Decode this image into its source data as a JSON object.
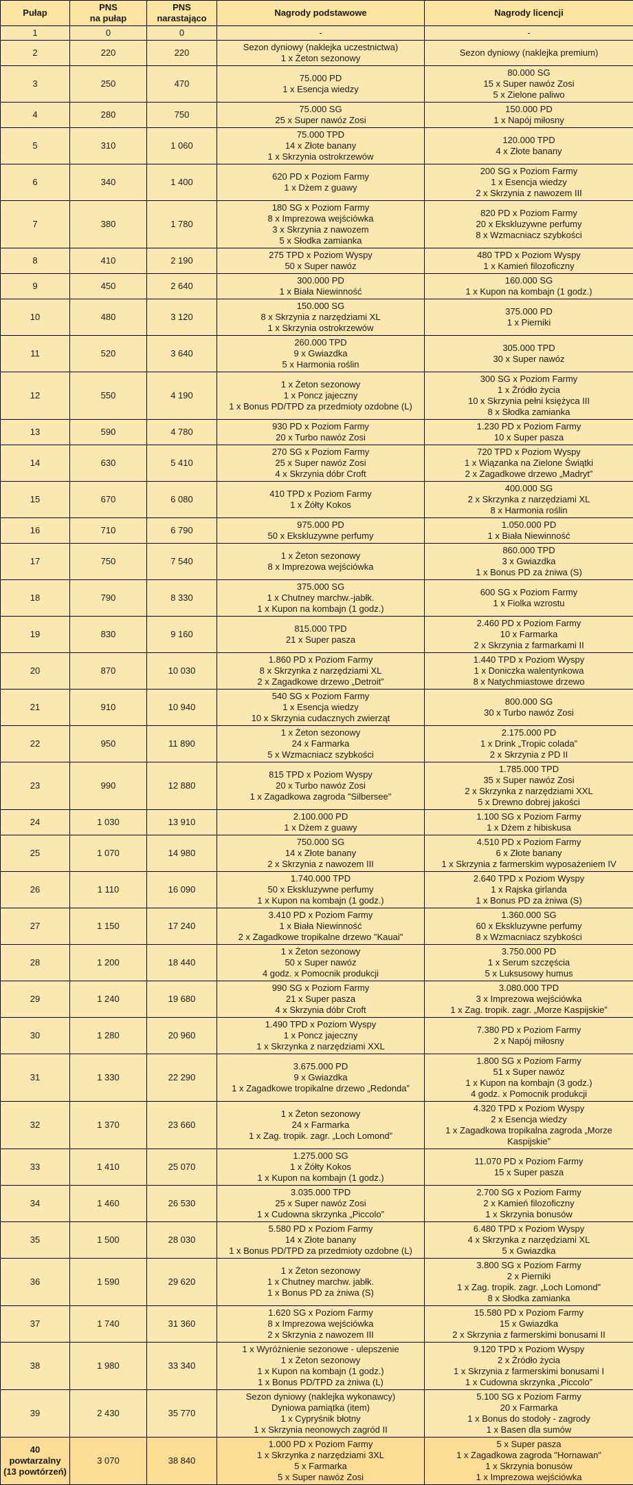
{
  "headers": {
    "level": "Pułap",
    "pns_level": [
      "PNS",
      "na pułap"
    ],
    "pns_total": [
      "PNS",
      "narastająco"
    ],
    "basic": "Nagrody podstawowe",
    "license": "Nagrody licencji"
  },
  "rows": [
    {
      "level": [
        "1"
      ],
      "pns": "0",
      "total": "0",
      "basic": [
        "-"
      ],
      "license": [
        "-"
      ]
    },
    {
      "level": [
        "2"
      ],
      "pns": "220",
      "total": "220",
      "basic": [
        "Sezon dyniowy (naklejka uczestnictwa)",
        "1 x Żeton sezonowy"
      ],
      "license": [
        "Sezon dyniowy (naklejka premium)"
      ]
    },
    {
      "level": [
        "3"
      ],
      "pns": "250",
      "total": "470",
      "basic": [
        "75.000 PD",
        "1 x Esencja wiedzy"
      ],
      "license": [
        "80.000 SG",
        "15 x Super nawóz Zosi",
        "5 x Zielone paliwo"
      ]
    },
    {
      "level": [
        "4"
      ],
      "pns": "280",
      "total": "750",
      "basic": [
        "75.000 SG",
        "25 x Super nawóz Zosi"
      ],
      "license": [
        "150.000 PD",
        "1 x Napój miłosny"
      ]
    },
    {
      "level": [
        "5"
      ],
      "pns": "310",
      "total": "1 060",
      "basic": [
        "75.000 TPD",
        "14 x Złote banany",
        "1 x Skrzynia ostrokrzewów"
      ],
      "license": [
        "120.000 TPD",
        "4 x Złote banany"
      ]
    },
    {
      "level": [
        "6"
      ],
      "pns": "340",
      "total": "1 400",
      "basic": [
        "620 PD x Poziom Farmy",
        "1 x Dżem z guawy"
      ],
      "license": [
        "200 SG x Poziom Farmy",
        "1 x Esencja wiedzy",
        "2 x Skrzynia z nawozem III"
      ]
    },
    {
      "level": [
        "7"
      ],
      "pns": "380",
      "total": "1 780",
      "basic": [
        "180 SG x Poziom Farmy",
        "8 x Imprezowa wejściówka",
        "3 x Skrzynia z nawozem",
        "5 x Słodka zamianka"
      ],
      "license": [
        "820 PD x Poziom Farmy",
        "20 x Ekskluzywne perfumy",
        "8 x Wzmacniacz szybkości"
      ]
    },
    {
      "level": [
        "8"
      ],
      "pns": "410",
      "total": "2 190",
      "basic": [
        "275 TPD x Poziom Wyspy",
        "50 x Super nawóz"
      ],
      "license": [
        "480 TPD x Poziom Wyspy",
        "1 x Kamień filozoficzny"
      ]
    },
    {
      "level": [
        "9"
      ],
      "pns": "450",
      "total": "2 640",
      "basic": [
        "300.000 PD",
        "1 x Biała Niewinność"
      ],
      "license": [
        "160.000 SG",
        "1 x Kupon na kombajn (1 godz.)"
      ]
    },
    {
      "level": [
        "10"
      ],
      "pns": "480",
      "total": "3 120",
      "basic": [
        "150.000 SG",
        "8 x Skrzynia z narzędziami XL",
        "1 x Skrzynia ostrokrzewów"
      ],
      "license": [
        "375.000 PD",
        "1 x Pierniki"
      ]
    },
    {
      "level": [
        "11"
      ],
      "pns": "520",
      "total": "3 640",
      "basic": [
        "260.000 TPD",
        "9 x Gwiazdka",
        "5 x Harmonia roślin"
      ],
      "license": [
        "305.000 TPD",
        "30 x Super nawóz"
      ]
    },
    {
      "level": [
        "12"
      ],
      "pns": "550",
      "total": "4 190",
      "basic": [
        "1 x Żeton sezonowy",
        "1 x Poncz jajeczny",
        "1 x Bonus PD/TPD za przedmioty ozdobne (L)"
      ],
      "license": [
        "300 SG x Poziom Farmy",
        "1 x Źródło życia",
        "10 x Skrzynia pełni księżyca III",
        "8 x Słodka zamianka"
      ]
    },
    {
      "level": [
        "13"
      ],
      "pns": "590",
      "total": "4 780",
      "basic": [
        "930 PD x Poziom Farmy",
        "20 x Turbo nawóz Zosi"
      ],
      "license": [
        "1.230 PD x Poziom Farmy",
        "10 x Super pasza"
      ]
    },
    {
      "level": [
        "14"
      ],
      "pns": "630",
      "total": "5 410",
      "basic": [
        "270 SG x Poziom Farmy",
        "25 x Super nawóz Zosi",
        "4 x Skrzynia dóbr Croft"
      ],
      "license": [
        "720 TPD x Poziom Wyspy",
        "1 x Wiązanka na Zielone Świątki",
        "2 x Zagadkowe drzewo „Madryt”"
      ]
    },
    {
      "level": [
        "15"
      ],
      "pns": "670",
      "total": "6 080",
      "basic": [
        "410 TPD x Poziom Farmy",
        "1 x Żółty Kokos"
      ],
      "license": [
        "400.000 SG",
        "2 x Skrzynka z narzędziami XL",
        "8 x Harmonia roślin"
      ]
    },
    {
      "level": [
        "16"
      ],
      "pns": "710",
      "total": "6 790",
      "basic": [
        "975.000 PD",
        "50 x Ekskluzywne perfumy"
      ],
      "license": [
        "1.050.000 PD",
        "1 x Biała Niewinność"
      ]
    },
    {
      "level": [
        "17"
      ],
      "pns": "750",
      "total": "7 540",
      "basic": [
        "1 x Żeton sezonowy",
        "8 x Imprezowa wejściówka"
      ],
      "license": [
        "860.000 TPD",
        "3 x Gwiazdka",
        "1 x Bonus PD za żniwa (S)"
      ]
    },
    {
      "level": [
        "18"
      ],
      "pns": "790",
      "total": "8 330",
      "basic": [
        "375.000 SG",
        "1 x Chutney marchw.-jabłk.",
        "1 x Kupon na kombajn (1 godz.)"
      ],
      "license": [
        "600 SG x Poziom Farmy",
        "1 x Fiolka wzrostu"
      ]
    },
    {
      "level": [
        "19"
      ],
      "pns": "830",
      "total": "9 160",
      "basic": [
        "815.000 TPD",
        "21 x Super pasza"
      ],
      "license": [
        "2.460 PD x Poziom Farmy",
        "10 x Farmarka",
        "2 x Skrzynia z farmarkami II"
      ]
    },
    {
      "level": [
        "20"
      ],
      "pns": "870",
      "total": "10 030",
      "basic": [
        "1.860 PD x Poziom Farmy",
        "8 x Skrzynka z narzędziami XL",
        "2 x Zagadkowe drzewo „Detroit”"
      ],
      "license": [
        "1.440 TPD x Poziom Wyspy",
        "1 x Doniczka walentynkowa",
        "8 x Natychmiastowe drzewo"
      ]
    },
    {
      "level": [
        "21"
      ],
      "pns": "910",
      "total": "10 940",
      "basic": [
        "540 SG x Poziom Farmy",
        "1 x Esencja wiedzy",
        "10 x Skrzynia cudacznych zwierząt"
      ],
      "license": [
        "800.000 SG",
        "30 x Turbo nawóz Zosi"
      ]
    },
    {
      "level": [
        "22"
      ],
      "pns": "950",
      "total": "11 890",
      "basic": [
        "1 x Żeton sezonowy",
        "24 x Farmarka",
        "5 x Wzmacniacz szybkości"
      ],
      "license": [
        "2.175.000 PD",
        "1 x Drink „Tropic colada”",
        "2 x Skrzynia z PD II"
      ]
    },
    {
      "level": [
        "23"
      ],
      "pns": "990",
      "total": "12 880",
      "basic": [
        "815 TPD x Poziom Wyspy",
        "20 x Turbo nawóz Zosi",
        "1 x Zagadkowa zagroda \"Silbersee\""
      ],
      "license": [
        "1.785.000 TPD",
        "35 x Super nawóz Zosi",
        "2 x Skrzynka z narzędziami XXL",
        "5 x Drewno dobrej jakości"
      ]
    },
    {
      "level": [
        "24"
      ],
      "pns": "1 030",
      "total": "13 910",
      "basic": [
        "2.100.000 PD",
        "1 x Dżem z guawy"
      ],
      "license": [
        "1.100 SG x Poziom Farmy",
        "1 x Dżem z hibiskusa"
      ]
    },
    {
      "level": [
        "25"
      ],
      "pns": "1 070",
      "total": "14 980",
      "basic": [
        "750.000 SG",
        "14 x Złote banany",
        "2 x Skrzynia z nawozem III"
      ],
      "license": [
        "4.510 PD x Poziom Farmy",
        "6 x Złote banany",
        "1 x Skrzynia z farmerskim wyposażeniem IV"
      ]
    },
    {
      "level": [
        "26"
      ],
      "pns": "1 110",
      "total": "16 090",
      "basic": [
        "1.740.000 TPD",
        "50 x Ekskluzywne perfumy",
        "1 x Kupon na kombajn (1 godz.)"
      ],
      "license": [
        "2.640 TPD x Poziom Wyspy",
        "1 x Rajska girlanda",
        "1 x Bonus PD za żniwa (S)"
      ]
    },
    {
      "level": [
        "27"
      ],
      "pns": "1 150",
      "total": "17 240",
      "basic": [
        "3.410 PD x Poziom Farmy",
        "1 x Biała Niewinność",
        "2 x Zagadkowe tropikalne drzewo \"Kauai\""
      ],
      "license": [
        "1.360.000 SG",
        "60 x Ekskluzywne perfumy",
        "8 x Wzmacniacz szybkości"
      ]
    },
    {
      "level": [
        "28"
      ],
      "pns": "1 200",
      "total": "18 440",
      "basic": [
        "1 x Żeton sezonowy",
        "50 x Super nawóz",
        "4 godz. x Pomocnik produkcji"
      ],
      "license": [
        "3.750.000 PD",
        "1 x Serum szczęścia",
        "5 x Luksusowy humus"
      ]
    },
    {
      "level": [
        "29"
      ],
      "pns": "1 240",
      "total": "19 680",
      "basic": [
        "990 SG x Poziom Farmy",
        "21 x Super pasza",
        "4 x Skrzynia dóbr Croft"
      ],
      "license": [
        "3.080.000 TPD",
        "3 x Imprezowa wejściówka",
        "1 x Zag. tropik. zagr. „Morze Kaspijskie”"
      ]
    },
    {
      "level": [
        "30"
      ],
      "pns": "1 280",
      "total": "20 960",
      "basic": [
        "1.490 TPD x Poziom Wyspy",
        "1 x Poncz jajeczny",
        "1 x Skrzynka z narzędziami XXL"
      ],
      "license": [
        "7.380 PD x Poziom Farmy",
        "2 x Napój miłosny"
      ]
    },
    {
      "level": [
        "31"
      ],
      "pns": "1 330",
      "total": "22 290",
      "basic": [
        "3.675.000 PD",
        "9 x Gwiazdka",
        "1 x Zagadkowe tropikalne drzewo „Redonda”"
      ],
      "license": [
        "1.800 SG x Poziom Farmy",
        "51 x Super nawóz",
        "1 x Kupon na kombajn (3 godz.)",
        "4 godz. x Pomocnik produkcji"
      ]
    },
    {
      "level": [
        "32"
      ],
      "pns": "1 370",
      "total": "23 660",
      "basic": [
        "1 x Żeton sezonowy",
        "24 x Farmarka",
        "1 x Zag. tropik. zagr. „Loch Lomond”"
      ],
      "license": [
        "4.320 TPD x Poziom Wyspy",
        "2 x Esencja wiedzy",
        "1 x Zagadkowa tropikalna zagroda „Morze Kaspijskie”"
      ]
    },
    {
      "level": [
        "33"
      ],
      "pns": "1 410",
      "total": "25 070",
      "basic": [
        "1.275.000 SG",
        "1 x Żółty Kokos",
        "1 x Kupon na kombajn (1 godz.)"
      ],
      "license": [
        "11.070 PD x Poziom Farmy",
        "15 x Super pasza"
      ]
    },
    {
      "level": [
        "34"
      ],
      "pns": "1 460",
      "total": "26 530",
      "basic": [
        "3.035.000 TPD",
        "25 x Super nawóz Zosi",
        "1 x Cudowna skrzynka „Piccolo”"
      ],
      "license": [
        "2.700 SG x Poziom Farmy",
        "2 x Kamień filozoficzny",
        "1 x Skrzynia bonusów"
      ]
    },
    {
      "level": [
        "35"
      ],
      "pns": "1 500",
      "total": "28 030",
      "basic": [
        "5.580 PD x Poziom Farmy",
        "14 x Złote banany",
        "1 x Bonus PD/TPD za przedmioty ozdobne (L)"
      ],
      "license": [
        "6.480 TPD x Poziom Wyspy",
        "4 x Skrzynka z narzędziami XL",
        "5 x Gwiazdka"
      ]
    },
    {
      "level": [
        "36"
      ],
      "pns": "1 590",
      "total": "29 620",
      "basic": [
        "1 x Żeton sezonowy",
        "1 x Chutney marchw. jabłk.",
        "1 x Bonus PD za żniwa (S)"
      ],
      "license": [
        "3.800 SG x Poziom Farmy",
        "2 x Pierniki",
        "1 x Zag. tropik. zagr. „Loch Lomond”",
        "8 x Słodka zamianka"
      ]
    },
    {
      "level": [
        "37"
      ],
      "pns": "1 740",
      "total": "31 360",
      "basic": [
        "1.620 SG x Poziom Farmy",
        "8 x Imprezowa wejściówka",
        "2 x Skrzynia z nawozem III"
      ],
      "license": [
        "15.580 PD x Poziom Farmy",
        "15 x Gwiazdka",
        "2 x Skrzynia z farmerskimi bonusami II"
      ]
    },
    {
      "level": [
        "38"
      ],
      "pns": "1 980",
      "total": "33 340",
      "basic": [
        "1 x Wyróżnienie sezonowe - ulepszenie",
        "1 x Żeton sezonowy",
        "1 x Kupon na kombajn (1 godz.)",
        "1 x Bonus PD/TPD za żniwa (L)"
      ],
      "license": [
        "9.120 TPD x Poziom Wyspy",
        "2 x Źródło życia",
        "1 x Skrzynia z farmerskimi bonusami I",
        "1 x Cudowna skrzynka „Piccolo”"
      ]
    },
    {
      "level": [
        "39"
      ],
      "pns": "2 430",
      "total": "35 770",
      "basic": [
        "Sezon dyniowy (naklejka wykonawcy)",
        "Dyniowa pamiątka (item)",
        "1 x Cypryśnik błotny",
        "1 x Skrzynia neonowych zagród II"
      ],
      "license": [
        "5.100 SG x Poziom Farmy",
        "20 x Farmarka",
        "1 x Bonus do stodoły - zagrody",
        "1 x Basen dla sumów"
      ]
    },
    {
      "level": [
        "40",
        "powtarzalny",
        "(13 powtórzeń)"
      ],
      "pns": "3 070",
      "total": "38 840",
      "basic": [
        "1.000 PD x Poziom Farmy",
        "1 x Skrzynka z narzędziami 3XL",
        "5 x Farmarka",
        "5 x Super nawóz Zosi"
      ],
      "license": [
        "5 x Super pasza",
        "1 x Zagadkowa zagroda \"Hornawan\"",
        "1 x Skrzynia bonusów",
        "1 x Imprezowa wejściówka"
      ]
    }
  ]
}
